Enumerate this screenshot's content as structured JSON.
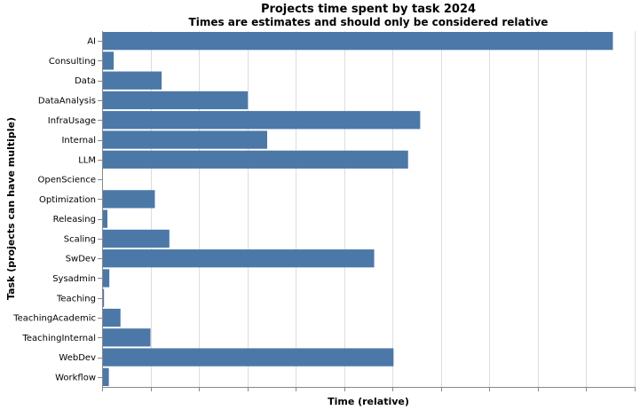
{
  "chart_data": {
    "type": "bar",
    "orientation": "horizontal",
    "title": "Projects time spent by task 2024",
    "subtitle": "Times are estimates and should only be considered relative",
    "xlabel": "Time (relative)",
    "ylabel": "Task (projects can have multiple)",
    "x_tick_labels_shown": false,
    "xlim": [
      0,
      1.1
    ],
    "x_ticks": [
      0,
      0.1,
      0.2,
      0.3,
      0.4,
      0.5,
      0.6,
      0.7,
      0.8,
      0.9,
      1.0,
      1.1
    ],
    "grid": true,
    "bar_color": "#4c78a8",
    "categories": [
      "AI",
      "Consulting",
      "Data",
      "DataAnalysis",
      "InfraUsage",
      "Internal",
      "LLM",
      "OpenScience",
      "Optimization",
      "Releasing",
      "Scaling",
      "SwDev",
      "Sysadmin",
      "Teaching",
      "TeachingAcademic",
      "TeachingInternal",
      "WebDev",
      "Workflow"
    ],
    "values": [
      1.055,
      0.024,
      0.123,
      0.301,
      0.657,
      0.341,
      0.632,
      0.0,
      0.109,
      0.011,
      0.139,
      0.562,
      0.015,
      0.004,
      0.038,
      0.1,
      0.602,
      0.014
    ]
  }
}
